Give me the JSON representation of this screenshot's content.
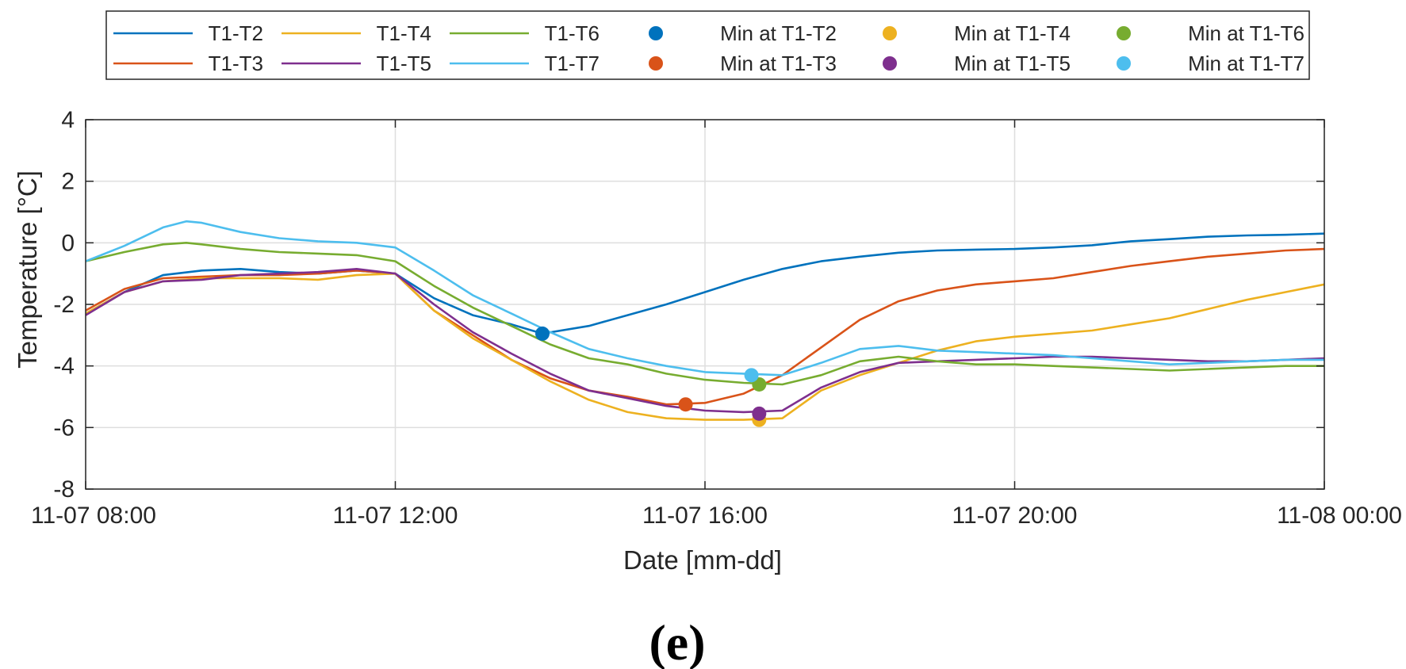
{
  "chart_data": {
    "type": "line",
    "title": "",
    "panel_label": "(e)",
    "xlabel": "Date [mm-dd]",
    "ylabel": "Temperature [°C]",
    "x_unit": "hours since 11-07 08:00",
    "xlim": [
      0,
      16
    ],
    "ylim": [
      -8,
      4
    ],
    "yticks": [
      -8,
      -6,
      -4,
      -2,
      0,
      2,
      4
    ],
    "xticks": [
      0,
      4,
      8,
      12,
      16
    ],
    "xtick_labels": [
      "11-07 08:00",
      "11-07 12:00",
      "11-07 16:00",
      "11-07 20:00",
      "11-08 00:00"
    ],
    "grid": true,
    "legend_position": "top, outside, 6 columns",
    "series": [
      {
        "name": "T1-T2",
        "color": "#0072BD",
        "x": [
          0,
          0.5,
          1,
          1.5,
          2,
          2.5,
          3,
          3.5,
          4,
          4.5,
          5,
          5.5,
          5.9,
          6.5,
          7,
          7.5,
          8,
          8.5,
          9,
          9.5,
          10,
          10.5,
          11,
          11.5,
          12,
          12.5,
          13,
          13.5,
          14,
          14.5,
          15,
          15.5,
          16
        ],
        "y": [
          -2.3,
          -1.6,
          -1.05,
          -0.9,
          -0.85,
          -0.95,
          -1.0,
          -0.9,
          -1.0,
          -1.8,
          -2.35,
          -2.65,
          -2.95,
          -2.7,
          -2.35,
          -2.0,
          -1.6,
          -1.2,
          -0.85,
          -0.6,
          -0.45,
          -0.32,
          -0.25,
          -0.22,
          -0.2,
          -0.15,
          -0.08,
          0.05,
          0.12,
          0.2,
          0.24,
          0.26,
          0.3
        ]
      },
      {
        "name": "T1-T3",
        "color": "#D95319",
        "x": [
          0,
          0.5,
          1,
          1.5,
          2,
          2.5,
          3,
          3.5,
          4,
          4.5,
          5,
          5.5,
          6,
          6.5,
          7,
          7.5,
          8,
          8.5,
          9,
          9.5,
          10,
          10.5,
          11,
          11.5,
          12,
          12.5,
          13,
          13.5,
          14,
          14.5,
          15,
          15.5,
          16
        ],
        "y": [
          -2.2,
          -1.5,
          -1.15,
          -1.1,
          -1.05,
          -1.05,
          -1.0,
          -0.9,
          -1.0,
          -2.2,
          -3.0,
          -3.8,
          -4.4,
          -4.8,
          -5.0,
          -5.25,
          -5.2,
          -4.9,
          -4.3,
          -3.4,
          -2.5,
          -1.9,
          -1.55,
          -1.35,
          -1.25,
          -1.15,
          -0.95,
          -0.75,
          -0.6,
          -0.45,
          -0.35,
          -0.25,
          -0.2
        ]
      },
      {
        "name": "T1-T4",
        "color": "#EDB120",
        "x": [
          0,
          0.5,
          1,
          1.5,
          2,
          2.5,
          3,
          3.5,
          4,
          4.5,
          5,
          5.5,
          6,
          6.5,
          7,
          7.5,
          8,
          8.5,
          9,
          9.5,
          10,
          10.5,
          11,
          11.5,
          12,
          12.5,
          13,
          13.5,
          14,
          14.5,
          15,
          15.5,
          16
        ],
        "y": [
          -2.3,
          -1.6,
          -1.25,
          -1.15,
          -1.15,
          -1.15,
          -1.2,
          -1.05,
          -1.0,
          -2.2,
          -3.1,
          -3.8,
          -4.5,
          -5.1,
          -5.5,
          -5.7,
          -5.75,
          -5.75,
          -5.7,
          -4.8,
          -4.3,
          -3.9,
          -3.5,
          -3.2,
          -3.05,
          -2.95,
          -2.85,
          -2.65,
          -2.45,
          -2.15,
          -1.85,
          -1.6,
          -1.35
        ]
      },
      {
        "name": "T1-T5",
        "color": "#7E2F8E",
        "x": [
          0,
          0.5,
          1,
          1.5,
          2,
          2.5,
          3,
          3.5,
          4,
          4.5,
          5,
          5.5,
          6,
          6.5,
          7,
          7.5,
          8,
          8.5,
          9,
          9.5,
          10,
          10.5,
          11,
          11.5,
          12,
          12.5,
          13,
          13.5,
          14,
          14.5,
          15,
          15.5,
          16
        ],
        "y": [
          -2.35,
          -1.6,
          -1.25,
          -1.2,
          -1.05,
          -1.0,
          -0.95,
          -0.85,
          -1.0,
          -2.0,
          -2.9,
          -3.6,
          -4.25,
          -4.8,
          -5.05,
          -5.3,
          -5.45,
          -5.5,
          -5.45,
          -4.7,
          -4.2,
          -3.9,
          -3.85,
          -3.8,
          -3.75,
          -3.7,
          -3.7,
          -3.75,
          -3.8,
          -3.85,
          -3.85,
          -3.8,
          -3.75
        ]
      },
      {
        "name": "T1-T6",
        "color": "#77AC30",
        "x": [
          0,
          0.5,
          1,
          1.3,
          1.5,
          2,
          2.5,
          3,
          3.5,
          4,
          4.5,
          5,
          5.5,
          6,
          6.5,
          7,
          7.5,
          8,
          8.5,
          9,
          9.5,
          10,
          10.5,
          11,
          11.5,
          12,
          12.5,
          13,
          13.5,
          14,
          14.5,
          15,
          15.5,
          16
        ],
        "y": [
          -0.6,
          -0.3,
          -0.05,
          0.0,
          -0.05,
          -0.2,
          -0.3,
          -0.35,
          -0.4,
          -0.6,
          -1.4,
          -2.1,
          -2.7,
          -3.3,
          -3.75,
          -3.95,
          -4.25,
          -4.45,
          -4.55,
          -4.6,
          -4.3,
          -3.85,
          -3.7,
          -3.85,
          -3.95,
          -3.95,
          -4.0,
          -4.05,
          -4.1,
          -4.15,
          -4.1,
          -4.05,
          -4.0,
          -4.0
        ]
      },
      {
        "name": "T1-T7",
        "color": "#4DBEEE",
        "x": [
          0,
          0.5,
          1,
          1.3,
          1.5,
          2,
          2.5,
          3,
          3.5,
          4,
          4.5,
          5,
          5.5,
          6,
          6.5,
          7,
          7.5,
          8,
          8.5,
          9,
          9.5,
          10,
          10.5,
          11,
          11.5,
          12,
          12.5,
          13,
          13.5,
          14,
          14.5,
          15,
          15.5,
          16
        ],
        "y": [
          -0.6,
          -0.1,
          0.5,
          0.7,
          0.65,
          0.35,
          0.15,
          0.05,
          0.0,
          -0.15,
          -0.9,
          -1.7,
          -2.3,
          -2.9,
          -3.45,
          -3.75,
          -4.0,
          -4.2,
          -4.25,
          -4.3,
          -3.9,
          -3.45,
          -3.35,
          -3.5,
          -3.55,
          -3.6,
          -3.65,
          -3.75,
          -3.85,
          -3.95,
          -3.9,
          -3.85,
          -3.8,
          -3.8
        ]
      }
    ],
    "minima": [
      {
        "name": "Min at T1-T2",
        "color": "#0072BD",
        "x": 5.9,
        "y": -2.95
      },
      {
        "name": "Min at T1-T3",
        "color": "#D95319",
        "x": 7.75,
        "y": -5.25
      },
      {
        "name": "Min at T1-T4",
        "color": "#EDB120",
        "x": 8.7,
        "y": -5.75
      },
      {
        "name": "Min at T1-T5",
        "color": "#7E2F8E",
        "x": 8.7,
        "y": -5.55
      },
      {
        "name": "Min at T1-T6",
        "color": "#77AC30",
        "x": 8.7,
        "y": -4.6
      },
      {
        "name": "Min at T1-T7",
        "color": "#4DBEEE",
        "x": 8.6,
        "y": -4.3
      }
    ],
    "legend_order": [
      [
        "T1-T2",
        "T1-T4",
        "T1-T6",
        "Min at T1-T2",
        "Min at T1-T4",
        "Min at T1-T6"
      ],
      [
        "T1-T3",
        "T1-T5",
        "T1-T7",
        "Min at T1-T3",
        "Min at T1-T5",
        "Min at T1-T7"
      ]
    ]
  }
}
